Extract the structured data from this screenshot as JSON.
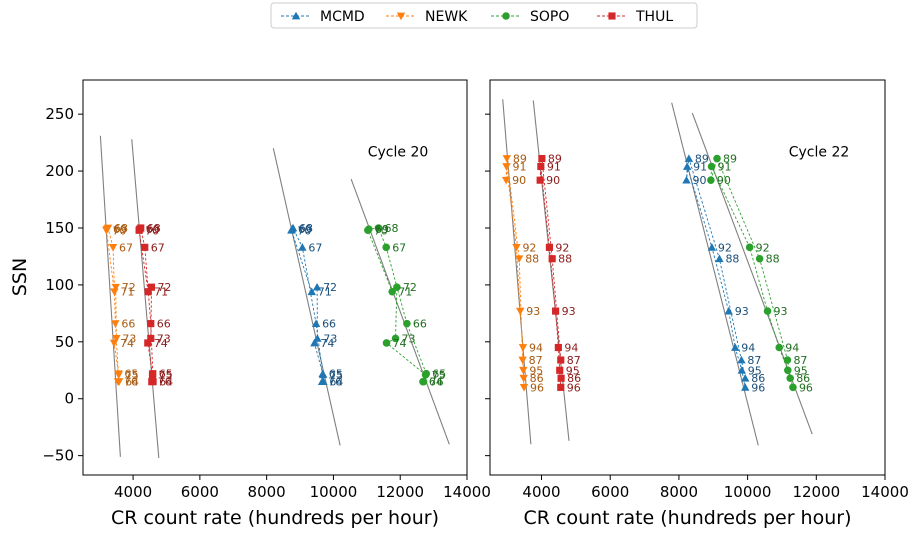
{
  "chart_data": {
    "type": "scatter",
    "legend": {
      "placement": "top-center",
      "entries": [
        {
          "name": "MCMD",
          "color": "#1f77b4",
          "marker": "triangle-up"
        },
        {
          "name": "NEWK",
          "color": "#ff7f0e",
          "marker": "triangle-down"
        },
        {
          "name": "SOPO",
          "color": "#2ca02c",
          "marker": "circle"
        },
        {
          "name": "THUL",
          "color": "#d62728",
          "marker": "square"
        }
      ]
    },
    "label_colors": {
      "MCMD": "#1a4f7a",
      "NEWK": "#a85a10",
      "SOPO": "#1f6f1f",
      "THUL": "#8b1a1a"
    },
    "fit_line_color": "#808080",
    "grid": false,
    "ylabel": "SSN",
    "xlim": [
      2500,
      14000
    ],
    "ylim": [
      -67,
      280
    ],
    "xticks": [
      "4000",
      "6000",
      "8000",
      "10000",
      "12000",
      "14000"
    ],
    "yticks": [
      "−50",
      "0",
      "50",
      "100",
      "150",
      "200",
      "250"
    ],
    "panels": [
      {
        "annotation": "Cycle 20",
        "xlabel": "CR count rate (hundreds per hour)",
        "series": [
          {
            "name": "MCMD",
            "points": [
              {
                "label": "64",
                "x": 9700,
                "y": 15
              },
              {
                "label": "65",
                "x": 9680,
                "y": 22
              },
              {
                "label": "66",
                "x": 9480,
                "y": 66
              },
              {
                "label": "67",
                "x": 9070,
                "y": 133
              },
              {
                "label": "68",
                "x": 8790,
                "y": 150
              },
              {
                "label": "69",
                "x": 8760,
                "y": 149
              },
              {
                "label": "70",
                "x": 8740,
                "y": 148
              },
              {
                "label": "71",
                "x": 9350,
                "y": 94
              },
              {
                "label": "72",
                "x": 9510,
                "y": 98
              },
              {
                "label": "73",
                "x": 9520,
                "y": 53
              },
              {
                "label": "74",
                "x": 9430,
                "y": 49
              },
              {
                "label": "75",
                "x": 9690,
                "y": 21
              },
              {
                "label": "76",
                "x": 9660,
                "y": 15
              }
            ],
            "fit": [
              [
                8200,
                220
              ],
              [
                10200,
                -41
              ]
            ]
          },
          {
            "name": "NEWK",
            "points": [
              {
                "label": "64",
                "x": 3580,
                "y": 15
              },
              {
                "label": "65",
                "x": 3560,
                "y": 22
              },
              {
                "label": "66",
                "x": 3470,
                "y": 66
              },
              {
                "label": "67",
                "x": 3400,
                "y": 133
              },
              {
                "label": "68",
                "x": 3250,
                "y": 150
              },
              {
                "label": "69",
                "x": 3220,
                "y": 149
              },
              {
                "label": "70",
                "x": 3200,
                "y": 148
              },
              {
                "label": "71",
                "x": 3440,
                "y": 94
              },
              {
                "label": "72",
                "x": 3480,
                "y": 98
              },
              {
                "label": "73",
                "x": 3500,
                "y": 53
              },
              {
                "label": "74",
                "x": 3430,
                "y": 49
              },
              {
                "label": "75",
                "x": 3570,
                "y": 21
              },
              {
                "label": "76",
                "x": 3550,
                "y": 15
              }
            ],
            "fit": [
              [
                3020,
                231
              ],
              [
                3620,
                -51
              ]
            ]
          },
          {
            "name": "SOPO",
            "points": [
              {
                "label": "64",
                "x": 12680,
                "y": 15
              },
              {
                "label": "65",
                "x": 12780,
                "y": 22
              },
              {
                "label": "66",
                "x": 12200,
                "y": 66
              },
              {
                "label": "67",
                "x": 11580,
                "y": 133
              },
              {
                "label": "68",
                "x": 11350,
                "y": 150
              },
              {
                "label": "69",
                "x": 11060,
                "y": 149
              },
              {
                "label": "70",
                "x": 11030,
                "y": 148
              },
              {
                "label": "71",
                "x": 11760,
                "y": 94
              },
              {
                "label": "72",
                "x": 11900,
                "y": 98
              },
              {
                "label": "73",
                "x": 11860,
                "y": 53
              },
              {
                "label": "74",
                "x": 11590,
                "y": 49
              },
              {
                "label": "75",
                "x": 12760,
                "y": 21
              },
              {
                "label": "76",
                "x": 12700,
                "y": 15
              }
            ],
            "fit": [
              [
                10530,
                193
              ],
              [
                13470,
                -40
              ]
            ]
          },
          {
            "name": "THUL",
            "points": [
              {
                "label": "64",
                "x": 4600,
                "y": 15
              },
              {
                "label": "65",
                "x": 4590,
                "y": 22
              },
              {
                "label": "66",
                "x": 4530,
                "y": 66
              },
              {
                "label": "67",
                "x": 4350,
                "y": 133
              },
              {
                "label": "68",
                "x": 4230,
                "y": 150
              },
              {
                "label": "69",
                "x": 4200,
                "y": 149
              },
              {
                "label": "70",
                "x": 4180,
                "y": 148
              },
              {
                "label": "71",
                "x": 4450,
                "y": 94
              },
              {
                "label": "72",
                "x": 4550,
                "y": 98
              },
              {
                "label": "73",
                "x": 4530,
                "y": 53
              },
              {
                "label": "74",
                "x": 4440,
                "y": 49
              },
              {
                "label": "75",
                "x": 4580,
                "y": 21
              },
              {
                "label": "76",
                "x": 4560,
                "y": 15
              }
            ],
            "fit": [
              [
                3960,
                228
              ],
              [
                4770,
                -52
              ]
            ]
          }
        ]
      },
      {
        "annotation": "Cycle 22",
        "xlabel": "CR count rate (hundreds per hour)",
        "series": [
          {
            "name": "MCMD",
            "points": [
              {
                "label": "86",
                "x": 9930,
                "y": 18
              },
              {
                "label": "87",
                "x": 9820,
                "y": 34
              },
              {
                "label": "88",
                "x": 9180,
                "y": 123
              },
              {
                "label": "89",
                "x": 8290,
                "y": 211
              },
              {
                "label": "90",
                "x": 8220,
                "y": 192
              },
              {
                "label": "91",
                "x": 8240,
                "y": 204
              },
              {
                "label": "92",
                "x": 8960,
                "y": 133
              },
              {
                "label": "93",
                "x": 9450,
                "y": 77
              },
              {
                "label": "94",
                "x": 9640,
                "y": 45
              },
              {
                "label": "95",
                "x": 9830,
                "y": 25
              },
              {
                "label": "96",
                "x": 9930,
                "y": 10
              }
            ],
            "fit": [
              [
                7790,
                260
              ],
              [
                10310,
                -41
              ]
            ]
          },
          {
            "name": "NEWK",
            "points": [
              {
                "label": "86",
                "x": 3480,
                "y": 18
              },
              {
                "label": "87",
                "x": 3450,
                "y": 34
              },
              {
                "label": "88",
                "x": 3350,
                "y": 123
              },
              {
                "label": "89",
                "x": 2990,
                "y": 211
              },
              {
                "label": "90",
                "x": 2970,
                "y": 192
              },
              {
                "label": "91",
                "x": 2980,
                "y": 204
              },
              {
                "label": "92",
                "x": 3270,
                "y": 133
              },
              {
                "label": "93",
                "x": 3380,
                "y": 77
              },
              {
                "label": "94",
                "x": 3460,
                "y": 45
              },
              {
                "label": "95",
                "x": 3470,
                "y": 25
              },
              {
                "label": "96",
                "x": 3490,
                "y": 10
              }
            ],
            "fit": [
              [
                2870,
                263
              ],
              [
                3690,
                -40
              ]
            ]
          },
          {
            "name": "SOPO",
            "points": [
              {
                "label": "86",
                "x": 11240,
                "y": 18
              },
              {
                "label": "87",
                "x": 11160,
                "y": 34
              },
              {
                "label": "88",
                "x": 10350,
                "y": 123
              },
              {
                "label": "89",
                "x": 9110,
                "y": 211
              },
              {
                "label": "90",
                "x": 8930,
                "y": 192
              },
              {
                "label": "91",
                "x": 8950,
                "y": 204
              },
              {
                "label": "92",
                "x": 10060,
                "y": 133
              },
              {
                "label": "93",
                "x": 10580,
                "y": 77
              },
              {
                "label": "94",
                "x": 10920,
                "y": 45
              },
              {
                "label": "95",
                "x": 11170,
                "y": 25
              },
              {
                "label": "96",
                "x": 11320,
                "y": 10
              }
            ],
            "fit": [
              [
                8390,
                251
              ],
              [
                11880,
                -31
              ]
            ]
          },
          {
            "name": "THUL",
            "points": [
              {
                "label": "86",
                "x": 4570,
                "y": 18
              },
              {
                "label": "87",
                "x": 4560,
                "y": 34
              },
              {
                "label": "88",
                "x": 4310,
                "y": 123
              },
              {
                "label": "89",
                "x": 4010,
                "y": 211
              },
              {
                "label": "90",
                "x": 3960,
                "y": 192
              },
              {
                "label": "91",
                "x": 3980,
                "y": 204
              },
              {
                "label": "92",
                "x": 4230,
                "y": 133
              },
              {
                "label": "93",
                "x": 4410,
                "y": 77
              },
              {
                "label": "94",
                "x": 4490,
                "y": 45
              },
              {
                "label": "95",
                "x": 4530,
                "y": 25
              },
              {
                "label": "96",
                "x": 4560,
                "y": 10
              }
            ],
            "fit": [
              [
                3760,
                262
              ],
              [
                4800,
                -37
              ]
            ]
          }
        ]
      }
    ]
  }
}
